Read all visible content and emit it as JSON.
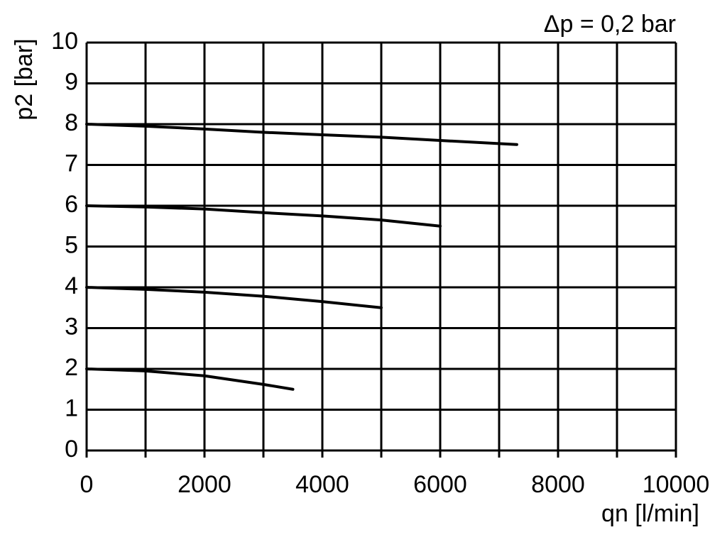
{
  "chart_data": {
    "type": "line",
    "annotation": "Δp = 0,2 bar",
    "y_label": "p2 [bar]",
    "x_label": "qn [l/min]",
    "xlim": [
      0,
      10000
    ],
    "ylim": [
      0,
      10
    ],
    "xticks": [
      0,
      2000,
      4000,
      6000,
      8000,
      10000
    ],
    "x_minor_ticks": [
      1000,
      3000,
      5000,
      7000,
      9000
    ],
    "yticks": [
      0,
      1,
      2,
      3,
      4,
      5,
      6,
      7,
      8,
      9,
      10
    ],
    "grid": true,
    "series": [
      {
        "color": "#000000",
        "x": [
          0,
          1000,
          2000,
          3000,
          4000,
          5000,
          6000,
          7300
        ],
        "values": [
          8.0,
          7.95,
          7.88,
          7.8,
          7.74,
          7.68,
          7.6,
          7.5
        ]
      },
      {
        "color": "#000000",
        "x": [
          0,
          1000,
          2000,
          3000,
          4000,
          5000,
          6000
        ],
        "values": [
          6.0,
          5.97,
          5.92,
          5.83,
          5.75,
          5.65,
          5.5
        ]
      },
      {
        "color": "#000000",
        "x": [
          0,
          1000,
          2000,
          3000,
          4000,
          5000
        ],
        "values": [
          4.0,
          3.95,
          3.88,
          3.78,
          3.65,
          3.5
        ]
      },
      {
        "color": "#000000",
        "x": [
          0,
          1000,
          2000,
          3000,
          3500
        ],
        "values": [
          2.0,
          1.95,
          1.83,
          1.62,
          1.5
        ]
      }
    ]
  }
}
